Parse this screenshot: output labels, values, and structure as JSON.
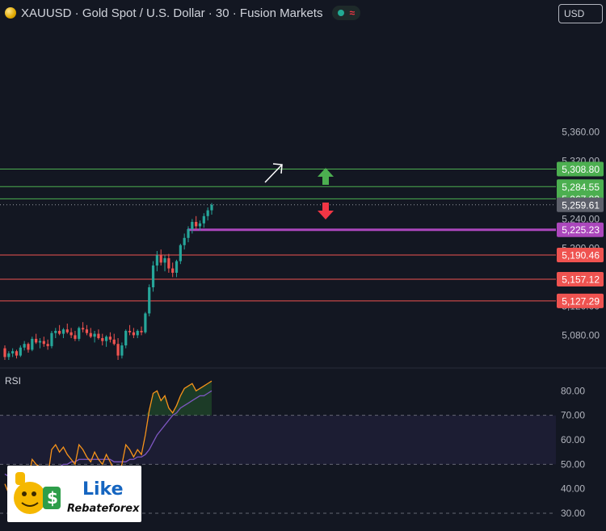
{
  "header": {
    "title": "XAUUSD · Gold Spot / U.S. Dollar · 30 · Fusion Markets",
    "currency": "USD"
  },
  "colors": {
    "background": "#131722",
    "up": "#26a69a",
    "down": "#ef5350",
    "resistance": "#4caf50",
    "support": "#ef5350",
    "pivot": "#ab47bc",
    "rsi_line": "#f7931a",
    "rsi_ma": "#7e57c2"
  },
  "chart_data": [
    {
      "type": "candlestick",
      "symbol": "XAUUSD",
      "interval": "30",
      "ylim": [
        5040,
        5400
      ],
      "y_ticks": [
        "5,360.00",
        "5,320.00",
        "5,280.00",
        "5,240.00",
        "5,200.00",
        "5,160.00",
        "5,120.00",
        "5,080.00"
      ],
      "y_tick_values": [
        5360,
        5320,
        5280,
        5240,
        5200,
        5160,
        5120,
        5080
      ],
      "ohlc": [
        [
          5062,
          5066,
          5046,
          5050
        ],
        [
          5050,
          5058,
          5046,
          5055
        ],
        [
          5055,
          5062,
          5050,
          5058
        ],
        [
          5058,
          5060,
          5048,
          5052
        ],
        [
          5052,
          5066,
          5050,
          5063
        ],
        [
          5063,
          5072,
          5059,
          5068
        ],
        [
          5068,
          5070,
          5056,
          5060
        ],
        [
          5060,
          5078,
          5058,
          5075
        ],
        [
          5075,
          5082,
          5068,
          5070
        ],
        [
          5070,
          5076,
          5062,
          5072
        ],
        [
          5072,
          5078,
          5064,
          5068
        ],
        [
          5068,
          5074,
          5060,
          5065
        ],
        [
          5065,
          5086,
          5062,
          5083
        ],
        [
          5083,
          5090,
          5076,
          5086
        ],
        [
          5086,
          5094,
          5080,
          5082
        ],
        [
          5082,
          5090,
          5076,
          5088
        ],
        [
          5088,
          5096,
          5082,
          5084
        ],
        [
          5084,
          5090,
          5076,
          5080
        ],
        [
          5080,
          5086,
          5072,
          5075
        ],
        [
          5075,
          5092,
          5072,
          5090
        ],
        [
          5090,
          5098,
          5084,
          5088
        ],
        [
          5088,
          5094,
          5080,
          5083
        ],
        [
          5083,
          5090,
          5076,
          5078
        ],
        [
          5078,
          5086,
          5070,
          5082
        ],
        [
          5082,
          5088,
          5074,
          5076
        ],
        [
          5076,
          5082,
          5066,
          5072
        ],
        [
          5072,
          5080,
          5064,
          5078
        ],
        [
          5078,
          5084,
          5070,
          5074
        ],
        [
          5074,
          5082,
          5066,
          5068
        ],
        [
          5068,
          5076,
          5046,
          5052
        ],
        [
          5052,
          5070,
          5048,
          5066
        ],
        [
          5066,
          5088,
          5062,
          5086
        ],
        [
          5086,
          5094,
          5080,
          5084
        ],
        [
          5084,
          5090,
          5076,
          5080
        ],
        [
          5080,
          5088,
          5076,
          5086
        ],
        [
          5086,
          5092,
          5080,
          5084
        ],
        [
          5084,
          5112,
          5082,
          5110
        ],
        [
          5110,
          5150,
          5106,
          5146
        ],
        [
          5146,
          5182,
          5140,
          5176
        ],
        [
          5176,
          5196,
          5168,
          5190
        ],
        [
          5190,
          5198,
          5176,
          5180
        ],
        [
          5180,
          5190,
          5168,
          5186
        ],
        [
          5186,
          5192,
          5166,
          5172
        ],
        [
          5172,
          5180,
          5160,
          5166
        ],
        [
          5166,
          5184,
          5160,
          5182
        ],
        [
          5182,
          5206,
          5178,
          5204
        ],
        [
          5204,
          5220,
          5198,
          5214
        ],
        [
          5214,
          5230,
          5208,
          5226
        ],
        [
          5226,
          5240,
          5220,
          5236
        ],
        [
          5236,
          5244,
          5226,
          5230
        ],
        [
          5230,
          5238,
          5224,
          5234
        ],
        [
          5234,
          5248,
          5228,
          5244
        ],
        [
          5244,
          5256,
          5238,
          5252
        ],
        [
          5252,
          5262,
          5246,
          5259.61
        ]
      ],
      "levels": [
        {
          "label": "5,308.80",
          "value": 5308.8,
          "kind": "resistance"
        },
        {
          "label": "5,284.55",
          "value": 5284.55,
          "kind": "resistance"
        },
        {
          "label": "5,267.82",
          "value": 5267.82,
          "kind": "resistance"
        },
        {
          "label": "5,259.61",
          "value": 5259.61,
          "kind": "last-price"
        },
        {
          "label": "5,225.23",
          "value": 5225.23,
          "kind": "pivot"
        },
        {
          "label": "5,190.46",
          "value": 5190.46,
          "kind": "support"
        },
        {
          "label": "5,157.12",
          "value": 5157.12,
          "kind": "support"
        },
        {
          "label": "5,127.29",
          "value": 5127.29,
          "kind": "support"
        }
      ]
    },
    {
      "type": "line",
      "title": "RSI",
      "ylim": [
        30,
        85
      ],
      "y_ticks": [
        "80.00",
        "70.00",
        "60.00",
        "50.00",
        "40.00",
        "30.00"
      ],
      "y_tick_values": [
        80,
        70,
        60,
        50,
        40,
        30
      ],
      "band": [
        50,
        70
      ],
      "series": [
        {
          "role": "rsi",
          "values": [
            42,
            38,
            34,
            40,
            45,
            48,
            44,
            52,
            50,
            49,
            47,
            45,
            56,
            58,
            55,
            57,
            54,
            52,
            50,
            58,
            56,
            53,
            51,
            55,
            52,
            50,
            54,
            51,
            48,
            44,
            50,
            58,
            56,
            53,
            56,
            54,
            62,
            72,
            79,
            80,
            76,
            78,
            73,
            71,
            74,
            78,
            81,
            82,
            83,
            80,
            81,
            82,
            83,
            84
          ]
        },
        {
          "role": "ma",
          "values": [
            46,
            45,
            44,
            43,
            43,
            43,
            43,
            44,
            45,
            46,
            46,
            46,
            47,
            48,
            49,
            50,
            50,
            51,
            51,
            52,
            52,
            52,
            52,
            52,
            52,
            52,
            52,
            52,
            51,
            51,
            51,
            51,
            52,
            52,
            53,
            53,
            54,
            56,
            59,
            62,
            64,
            66,
            68,
            70,
            71,
            73,
            74,
            75,
            76,
            77,
            78,
            78,
            79,
            80
          ]
        }
      ]
    }
  ],
  "rsi_label": "RSI",
  "logo": {
    "like": "Like",
    "brand": "Rebateforex"
  }
}
